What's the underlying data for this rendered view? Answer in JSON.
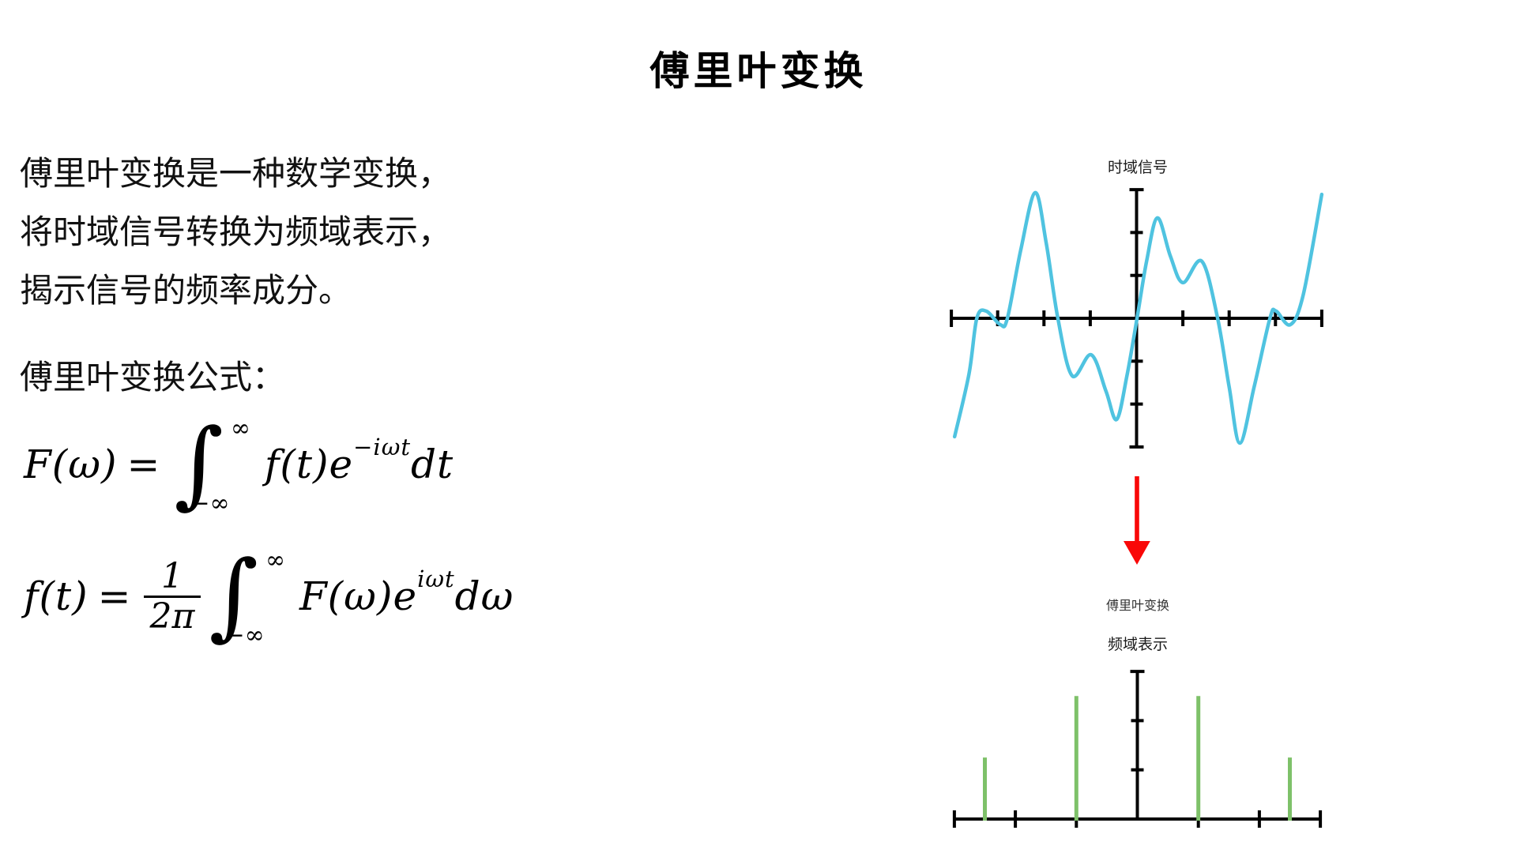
{
  "page_title": "傅里叶变换",
  "intro_lines": [
    "傅里叶变换是一种数学变换，",
    "将时域信号转换为频域表示，",
    "揭示信号的频率成分。"
  ],
  "formula_heading": "傅里叶变换公式：",
  "formulas": {
    "forward": {
      "lhs": "F(ω)",
      "eq": "=",
      "integral": "∫",
      "upper": "∞",
      "lower": "−∞",
      "body": "f(t)e",
      "exponent": "−iωt",
      "tail": "dt"
    },
    "inverse": {
      "lhs": "f(t)",
      "eq": "=",
      "frac_num": "1",
      "frac_den": "2π",
      "integral": "∫",
      "upper": "∞",
      "lower": "−∞",
      "body": "F(ω)e",
      "exponent": "iωt",
      "tail": "dω"
    }
  },
  "transform_arrow_label": "傅里叶变换",
  "colors": {
    "signal_cyan": "#4fc3e0",
    "spectrum_green": "#7ec169",
    "arrow_red": "#f90808",
    "axis_black": "#000000"
  },
  "chart_data": [
    {
      "type": "line",
      "title": "时域信号",
      "xlabel": "",
      "ylabel": "",
      "grid": false,
      "x_range": [
        -4,
        4
      ],
      "y_range": [
        -3,
        3
      ],
      "series": [
        {
          "name": "time-domain-signal",
          "color": "#4fc3e0",
          "points": [
            [
              -3.93,
              -2.76
            ],
            [
              -3.62,
              -1.3
            ],
            [
              -3.45,
              0.0
            ],
            [
              -3.25,
              0.17
            ],
            [
              -2.94,
              -0.15
            ],
            [
              -2.79,
              0.0
            ],
            [
              -2.5,
              1.6
            ],
            [
              -2.19,
              2.93
            ],
            [
              -1.95,
              1.75
            ],
            [
              -1.7,
              0.0
            ],
            [
              -1.39,
              -1.34
            ],
            [
              -0.98,
              -0.85
            ],
            [
              -0.66,
              -1.7
            ],
            [
              -0.43,
              -2.36
            ],
            [
              -0.21,
              -1.35
            ],
            [
              0.01,
              0.0
            ],
            [
              0.22,
              1.35
            ],
            [
              0.45,
              2.34
            ],
            [
              0.73,
              1.45
            ],
            [
              1.0,
              0.83
            ],
            [
              1.41,
              1.33
            ],
            [
              1.75,
              0.0
            ],
            [
              2.0,
              -1.6
            ],
            [
              2.23,
              -2.91
            ],
            [
              2.54,
              -1.6
            ],
            [
              2.88,
              0.0
            ],
            [
              3.01,
              0.17
            ],
            [
              3.32,
              -0.15
            ],
            [
              3.6,
              0.55
            ],
            [
              4.0,
              2.89
            ]
          ]
        }
      ]
    },
    {
      "type": "stem",
      "title": "频域表示",
      "xlabel": "",
      "ylabel": "",
      "grid": false,
      "x_range": [
        -3,
        3
      ],
      "y_range": [
        0,
        3
      ],
      "x": [
        -2.5,
        -1,
        1,
        2.5
      ],
      "values": [
        1.25,
        2.5,
        2.5,
        1.25
      ],
      "color": "#7ec169"
    }
  ]
}
